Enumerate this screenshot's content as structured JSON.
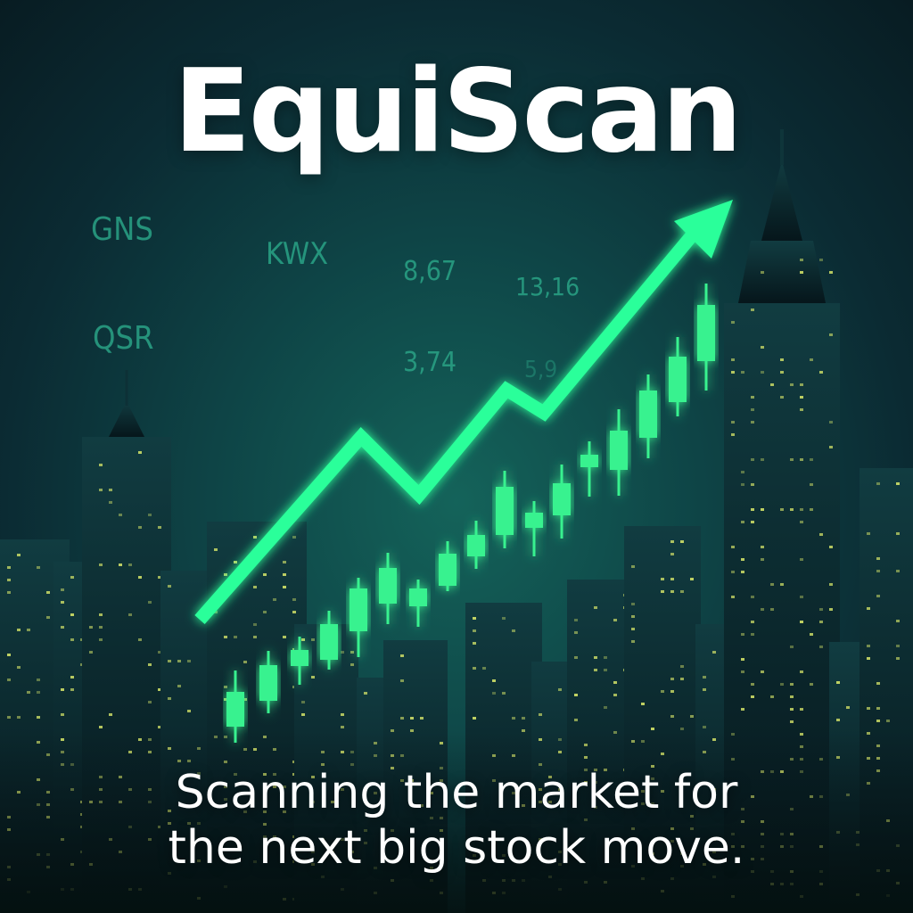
{
  "brand": {
    "name": "EquiScan"
  },
  "tickers": [
    {
      "text": "GNS"
    },
    {
      "text": "KWX"
    },
    {
      "text": "8,67"
    },
    {
      "text": "13,16"
    },
    {
      "text": "QSR"
    },
    {
      "text": "3,74"
    },
    {
      "text": "5,9"
    }
  ],
  "tagline": {
    "line1": "Scanning the market for",
    "line2": "the next big stock move."
  },
  "colors": {
    "accent": "#2bff9a",
    "candle": "#39f28f",
    "ticker": "#2aa386",
    "window": "#d9e86a",
    "building": "#0c2a30",
    "text": "#ffffff"
  }
}
